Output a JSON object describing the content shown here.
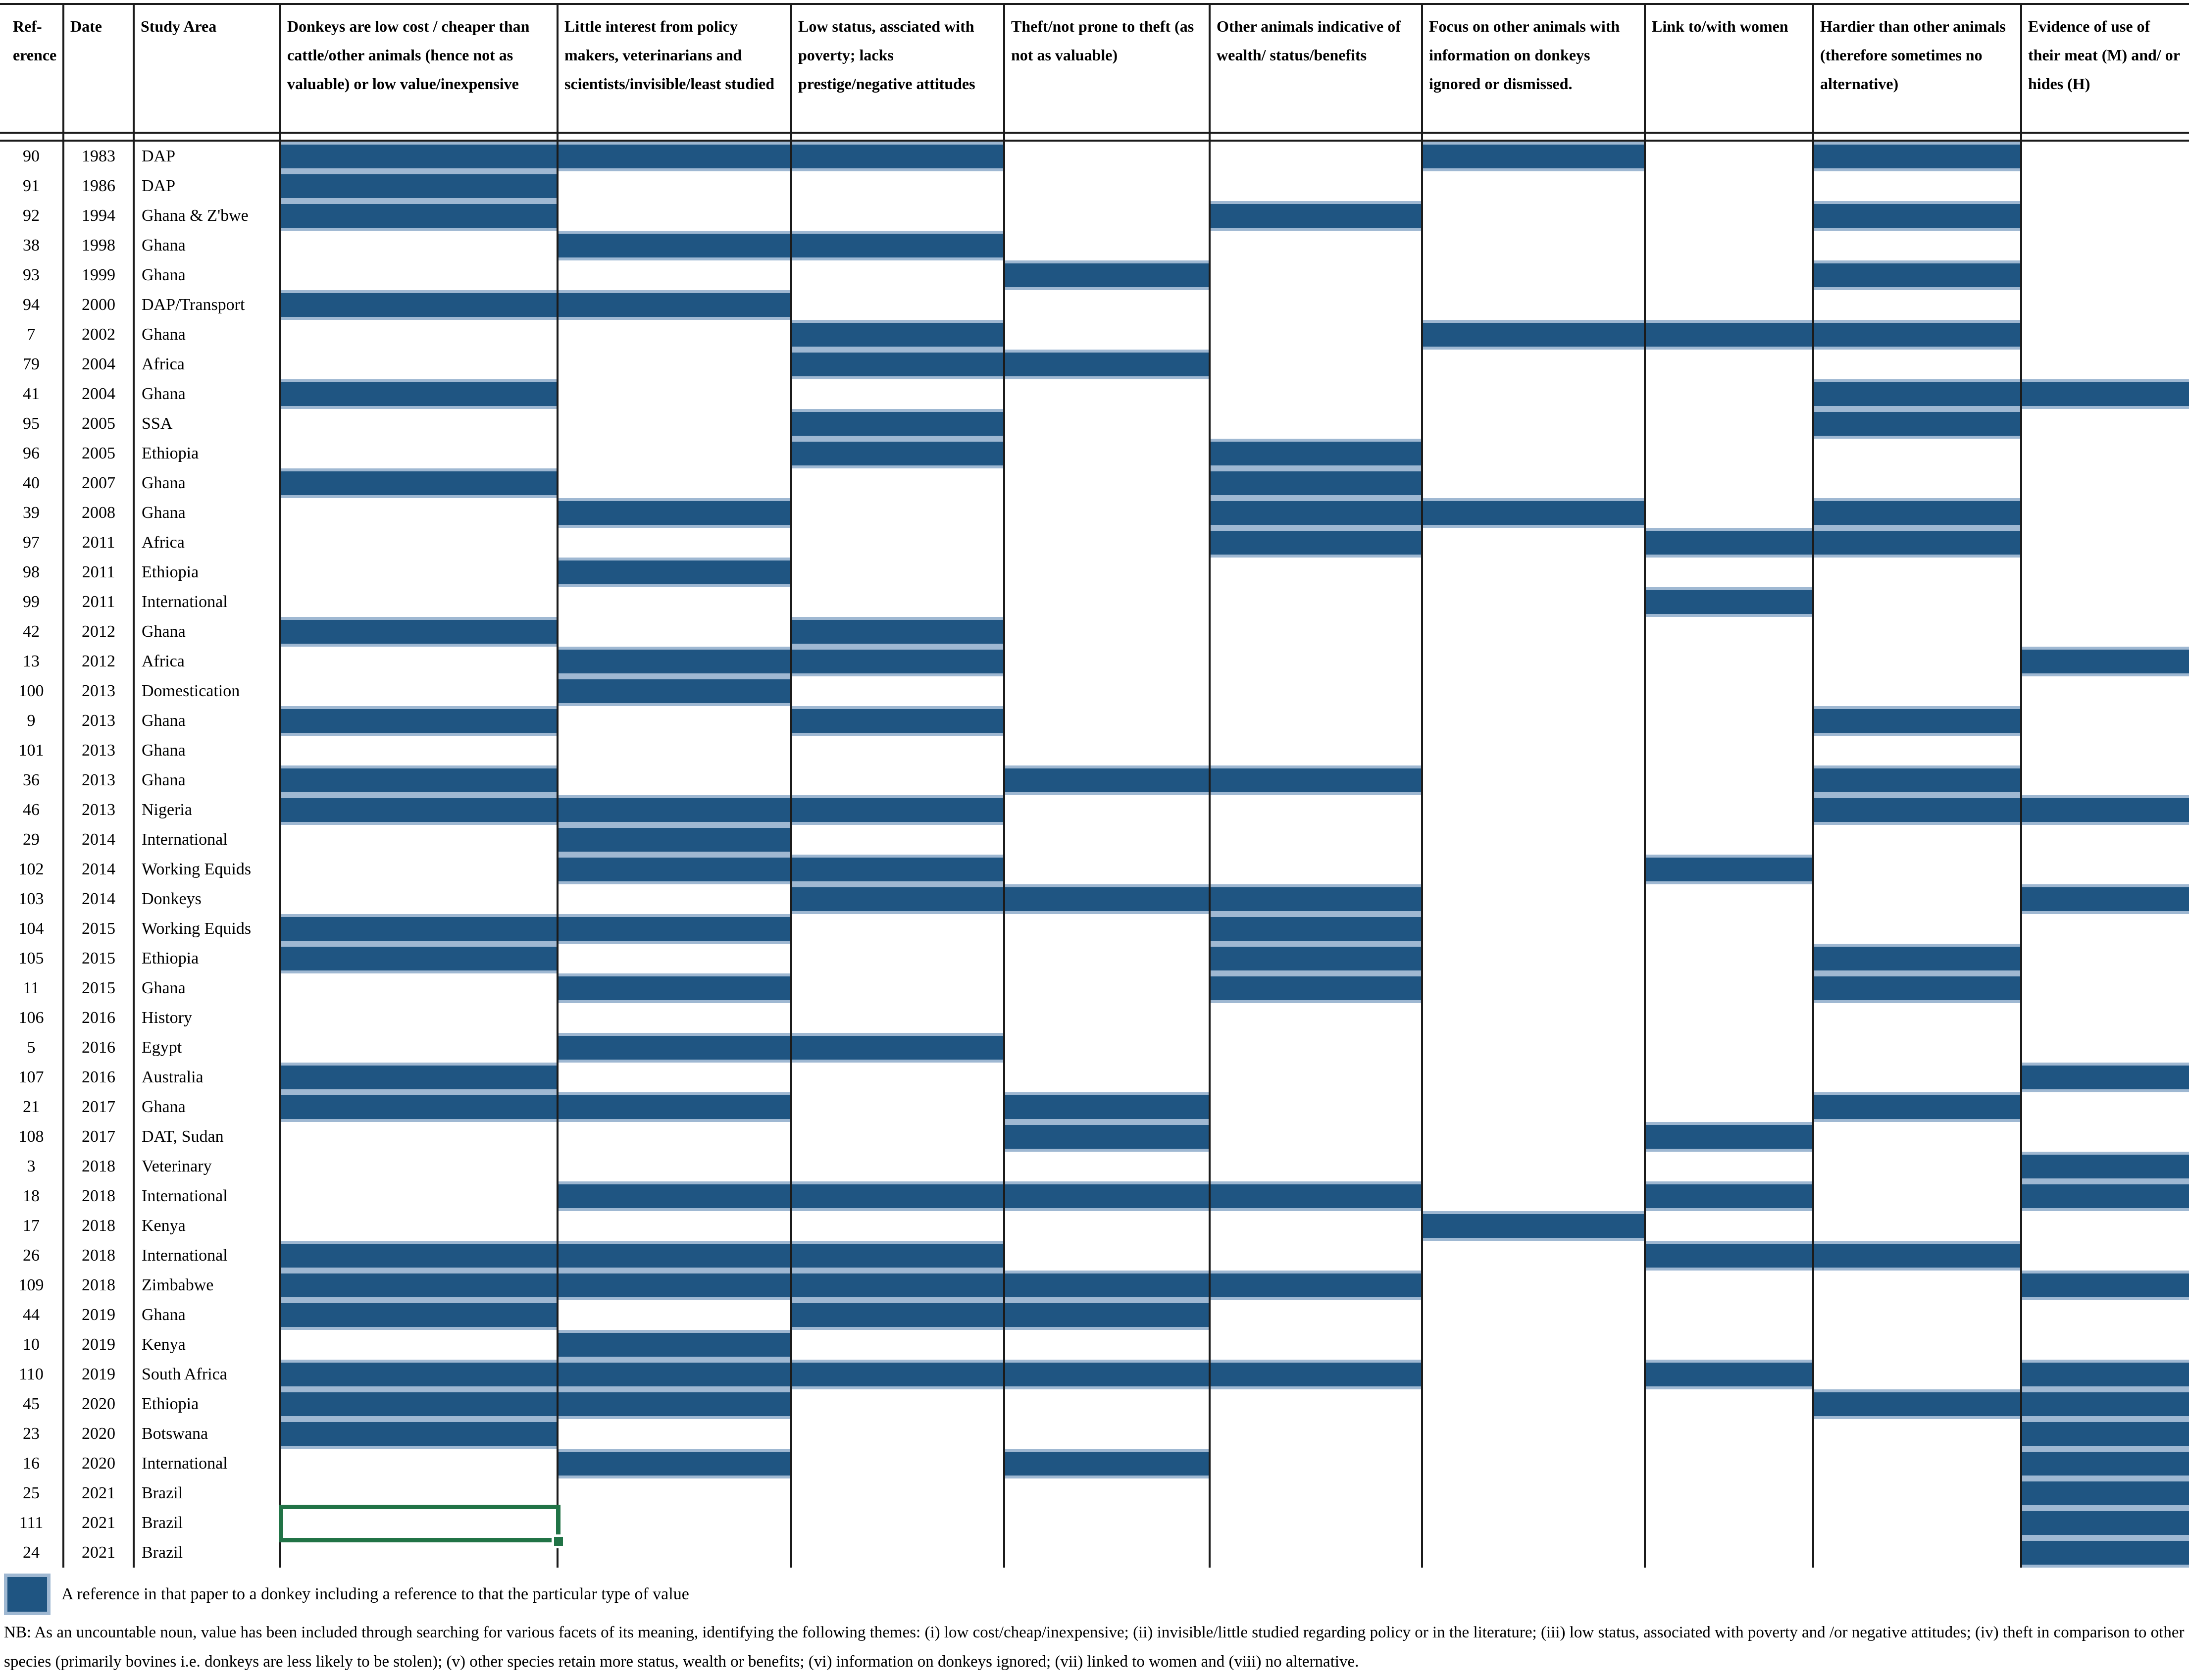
{
  "app": {
    "kind": "spreadsheet table screenshot"
  },
  "colors": {
    "cell_fill_blue": "#1F5582",
    "cell_fill_edge": "#9FB8D2",
    "selection_green": "#217346",
    "grid_line": "#1b1b1b",
    "background": "#ffffff"
  },
  "table": {
    "columns": [
      {
        "id": "ref",
        "label": "Ref-\nerence"
      },
      {
        "id": "date",
        "label": "Date"
      },
      {
        "id": "area",
        "label": "Study Area"
      },
      {
        "id": "low_cost",
        "label": "Donkeys are low cost / cheaper than cattle/other animals (hence not as valuable) or low value/inexpensive"
      },
      {
        "id": "little_interest",
        "label": "Little interest from policy makers, veterinarians and scientists/invisible/least studied"
      },
      {
        "id": "low_status",
        "label": "Low status, assciated with poverty; lacks prestige/negative attitudes"
      },
      {
        "id": "theft",
        "label": "Theft/not prone to theft (as not as valuable)"
      },
      {
        "id": "other_wealth",
        "label": "Other animals indicative of wealth/ status/benefits"
      },
      {
        "id": "focus_other",
        "label": "Focus on other animals with information on donkeys ignored or dismissed."
      },
      {
        "id": "women",
        "label": "Link to/with women"
      },
      {
        "id": "hardier",
        "label": "Hardier than other animals (therefore sometimes no alternative)"
      },
      {
        "id": "meat_hides",
        "label": "Evidence of use of their meat (M) and/ or hides (H)"
      }
    ],
    "value_column_ids": [
      "low_cost",
      "little_interest",
      "low_status",
      "theft",
      "other_wealth",
      "focus_other",
      "women",
      "hardier",
      "meat_hides"
    ],
    "rows": [
      {
        "ref": "90",
        "date": "1983",
        "area": "DAP",
        "filled": [
          "low_cost",
          "little_interest",
          "low_status",
          "focus_other",
          "hardier"
        ]
      },
      {
        "ref": "91",
        "date": "1986",
        "area": "DAP",
        "filled": [
          "low_cost"
        ]
      },
      {
        "ref": "92",
        "date": "1994",
        "area": "Ghana & Z'bwe",
        "filled": [
          "low_cost",
          "other_wealth",
          "hardier"
        ]
      },
      {
        "ref": "38",
        "date": "1998",
        "area": "Ghana",
        "filled": [
          "little_interest",
          "low_status"
        ]
      },
      {
        "ref": "93",
        "date": "1999",
        "area": "Ghana",
        "filled": [
          "theft",
          "hardier"
        ]
      },
      {
        "ref": "94",
        "date": "2000",
        "area": "DAP/Transport",
        "filled": [
          "low_cost",
          "little_interest"
        ]
      },
      {
        "ref": "7",
        "date": "2002",
        "area": "Ghana",
        "filled": [
          "low_status",
          "focus_other",
          "women",
          "hardier"
        ]
      },
      {
        "ref": "79",
        "date": "2004",
        "area": "Africa",
        "filled": [
          "low_status",
          "theft"
        ]
      },
      {
        "ref": "41",
        "date": "2004",
        "area": "Ghana",
        "filled": [
          "low_cost",
          "hardier",
          "meat_hides"
        ]
      },
      {
        "ref": "95",
        "date": "2005",
        "area": "SSA",
        "filled": [
          "low_status",
          "hardier"
        ]
      },
      {
        "ref": "96",
        "date": "2005",
        "area": "Ethiopia",
        "filled": [
          "low_status",
          "other_wealth"
        ]
      },
      {
        "ref": "40",
        "date": "2007",
        "area": "Ghana",
        "filled": [
          "low_cost",
          "other_wealth"
        ]
      },
      {
        "ref": "39",
        "date": "2008",
        "area": "Ghana",
        "filled": [
          "little_interest",
          "other_wealth",
          "focus_other",
          "hardier"
        ]
      },
      {
        "ref": "97",
        "date": "2011",
        "area": "Africa",
        "filled": [
          "other_wealth",
          "women",
          "hardier"
        ]
      },
      {
        "ref": "98",
        "date": "2011",
        "area": "Ethiopia",
        "filled": [
          "little_interest"
        ]
      },
      {
        "ref": "99",
        "date": "2011",
        "area": "International",
        "filled": [
          "women"
        ]
      },
      {
        "ref": "42",
        "date": "2012",
        "area": "Ghana",
        "filled": [
          "low_cost",
          "low_status"
        ]
      },
      {
        "ref": "13",
        "date": "2012",
        "area": "Africa",
        "filled": [
          "little_interest",
          "low_status",
          "meat_hides"
        ]
      },
      {
        "ref": "100",
        "date": "2013",
        "area": "Domestication",
        "filled": [
          "little_interest"
        ]
      },
      {
        "ref": "9",
        "date": "2013",
        "area": "Ghana",
        "filled": [
          "low_cost",
          "low_status",
          "hardier"
        ]
      },
      {
        "ref": "101",
        "date": "2013",
        "area": "Ghana",
        "filled": []
      },
      {
        "ref": "36",
        "date": "2013",
        "area": "Ghana",
        "filled": [
          "low_cost",
          "theft",
          "other_wealth",
          "hardier"
        ]
      },
      {
        "ref": "46",
        "date": "2013",
        "area": "Nigeria",
        "filled": [
          "low_cost",
          "little_interest",
          "low_status",
          "hardier",
          "meat_hides"
        ]
      },
      {
        "ref": "29",
        "date": "2014",
        "area": "International",
        "filled": [
          "little_interest"
        ]
      },
      {
        "ref": "102",
        "date": "2014",
        "area": "Working Equids",
        "filled": [
          "little_interest",
          "low_status",
          "women"
        ]
      },
      {
        "ref": "103",
        "date": "2014",
        "area": "Donkeys",
        "filled": [
          "low_status",
          "theft",
          "other_wealth",
          "meat_hides"
        ]
      },
      {
        "ref": "104",
        "date": "2015",
        "area": "Working Equids",
        "filled": [
          "low_cost",
          "little_interest",
          "other_wealth"
        ]
      },
      {
        "ref": "105",
        "date": "2015",
        "area": "Ethiopia",
        "filled": [
          "low_cost",
          "other_wealth",
          "hardier"
        ]
      },
      {
        "ref": "11",
        "date": "2015",
        "area": "Ghana",
        "filled": [
          "little_interest",
          "other_wealth",
          "hardier"
        ]
      },
      {
        "ref": "106",
        "date": "2016",
        "area": "History",
        "filled": []
      },
      {
        "ref": "5",
        "date": "2016",
        "area": "Egypt",
        "filled": [
          "little_interest",
          "low_status"
        ]
      },
      {
        "ref": "107",
        "date": "2016",
        "area": "Australia",
        "filled": [
          "low_cost",
          "meat_hides"
        ]
      },
      {
        "ref": "21",
        "date": "2017",
        "area": "Ghana",
        "filled": [
          "low_cost",
          "little_interest",
          "theft",
          "hardier"
        ]
      },
      {
        "ref": "108",
        "date": "2017",
        "area": "DAT, Sudan",
        "filled": [
          "theft",
          "women"
        ]
      },
      {
        "ref": "3",
        "date": "2018",
        "area": "Veterinary",
        "filled": [
          "meat_hides"
        ]
      },
      {
        "ref": "18",
        "date": "2018",
        "area": "International",
        "filled": [
          "little_interest",
          "low_status",
          "theft",
          "other_wealth",
          "women",
          "meat_hides"
        ]
      },
      {
        "ref": "17",
        "date": "2018",
        "area": "Kenya",
        "filled": [
          "focus_other"
        ]
      },
      {
        "ref": "26",
        "date": "2018",
        "area": "International",
        "filled": [
          "low_cost",
          "little_interest",
          "low_status",
          "women",
          "hardier"
        ]
      },
      {
        "ref": "109",
        "date": "2018",
        "area": "Zimbabwe",
        "filled": [
          "low_cost",
          "little_interest",
          "low_status",
          "theft",
          "other_wealth",
          "meat_hides"
        ]
      },
      {
        "ref": "44",
        "date": "2019",
        "area": "Ghana",
        "filled": [
          "low_cost",
          "low_status",
          "theft"
        ]
      },
      {
        "ref": "10",
        "date": "2019",
        "area": "Kenya",
        "filled": [
          "little_interest"
        ]
      },
      {
        "ref": "110",
        "date": "2019",
        "area": "South Africa",
        "filled": [
          "low_cost",
          "little_interest",
          "low_status",
          "theft",
          "other_wealth",
          "women",
          "meat_hides"
        ]
      },
      {
        "ref": "45",
        "date": "2020",
        "area": "Ethiopia",
        "filled": [
          "low_cost",
          "little_interest",
          "hardier",
          "meat_hides"
        ]
      },
      {
        "ref": "23",
        "date": "2020",
        "area": "Botswana",
        "filled": [
          "low_cost",
          "meat_hides"
        ]
      },
      {
        "ref": "16",
        "date": "2020",
        "area": "International",
        "filled": [
          "little_interest",
          "theft",
          "meat_hides"
        ]
      },
      {
        "ref": "25",
        "date": "2021",
        "area": "Brazil",
        "filled": [
          "meat_hides"
        ]
      },
      {
        "ref": "111",
        "date": "2021",
        "area": "Brazil",
        "filled": [
          "meat_hides"
        ]
      },
      {
        "ref": "24",
        "date": "2021",
        "area": "Brazil",
        "filled": [
          "meat_hides"
        ]
      }
    ],
    "selection": {
      "ref": "111",
      "column": "low_cost"
    }
  },
  "legend": {
    "label": "A reference in that paper to a donkey including a reference to that the particular type of value"
  },
  "notes": {
    "nb": "NB: As an uncountable noun, value has been included through searching for various facets of its meaning, identifying the following themes: (i) low cost/cheap/inexpensive; (ii) invisible/little studied regarding policy or in the literature; (iii) low status, associated with poverty and /or negative attitudes; (iv) theft in comparison to other species (primarily bovines i.e. donkeys are less likely to be stolen); (v) other species retain more status, wealth or benefits; (vi) information on donkeys ignored; (vii) linked to women and (viii) no alternative."
  }
}
